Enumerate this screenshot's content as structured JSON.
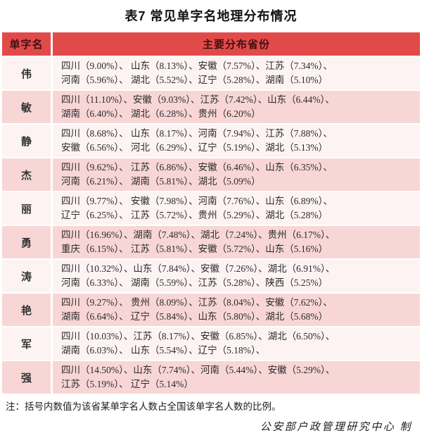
{
  "title": "表7  常见单字名地理分布情况",
  "table": {
    "headers": {
      "name": "单字名",
      "provinces": "主要分布省份"
    },
    "rows": [
      {
        "name": "伟",
        "lines": [
          "四川（9.00%）、 山东（8.13%）、安徽（7.57%）、江苏（7.34%）、",
          "河南（5.96%）、 湖北（5.52%）、辽宁（5.28%）、湖南（5.10%）"
        ]
      },
      {
        "name": "敏",
        "lines": [
          "四川（11.10%）、安徽（9.03%）、江苏（7.42%）、山东（6.44%）、",
          "湖南（6.40%）、 湖北（6.28%）、贵州（6.20%）"
        ]
      },
      {
        "name": "静",
        "lines": [
          "四川（8.68%）、 山东（8.17%）、河南（7.94%）、江苏（7.88%）、",
          "安徽（6.56%）、 河北（6.29%）、辽宁（5.19%）、湖北（5.13%）"
        ]
      },
      {
        "name": "杰",
        "lines": [
          "四川（9.62%）、 江苏（6.86%）、安徽（6.46%）、山东（6.35%）、",
          "河南（6.21%）、 湖南（5.81%）、湖北（5.09%）"
        ]
      },
      {
        "name": "丽",
        "lines": [
          "四川（9.77%）、 安徽（7.98%）、河南（7.76%）、山东（6.89%）、",
          "辽宁（6.25%）、 江苏（5.72%）、贵州（5.29%）、湖北（5.28%）"
        ]
      },
      {
        "name": "勇",
        "lines": [
          "四川（16.96%）、湖南（7.48%）、湖北（7.24%）、贵州（6.17%）、",
          "重庆（6.15%）、 江苏（5.81%）、安徽（5.72%）、山东（5.16%）"
        ]
      },
      {
        "name": "涛",
        "lines": [
          "四川（10.32%）、山东（7.84%）、安徽（7.26%）、湖北（6.91%）、",
          "河南（6.33%）、 湖南（5.59%）、江苏（5.28%）、陕西（5.25%）"
        ]
      },
      {
        "name": "艳",
        "lines": [
          "四川（9.27%）、 贵州（8.09%）、江苏（8.04%）、安徽（7.62%）、",
          "湖南（6.64%）、 辽宁（5.84%）、山东（5.80%）、湖北（5.68%）"
        ]
      },
      {
        "name": "军",
        "lines": [
          "四川（10.03%）、江苏（8.17%）、安徽（6.85%）、湖北（6.50%）、",
          "湖南（6.03%）、 山东（5.54%）、辽宁（5.18%）、"
        ]
      },
      {
        "name": "强",
        "lines": [
          "四川（14.50%）、山东（7.74%）、河南（5.44%）、安徽（5.29%）、",
          "江苏（5.19%）、 辽宁（5.14%）"
        ]
      }
    ]
  },
  "footer": {
    "note": "注：括号内数值为该省某单字名人数占全国该单字名人数的比例。",
    "credit": "公安部户政管理研究中心 制"
  },
  "colors": {
    "header_bg": "#e24a4a",
    "header_text": "#3f1111",
    "row_light": "#fdf3f3",
    "row_dark": "#f8d6d6",
    "body_text": "#2b2b2b"
  }
}
